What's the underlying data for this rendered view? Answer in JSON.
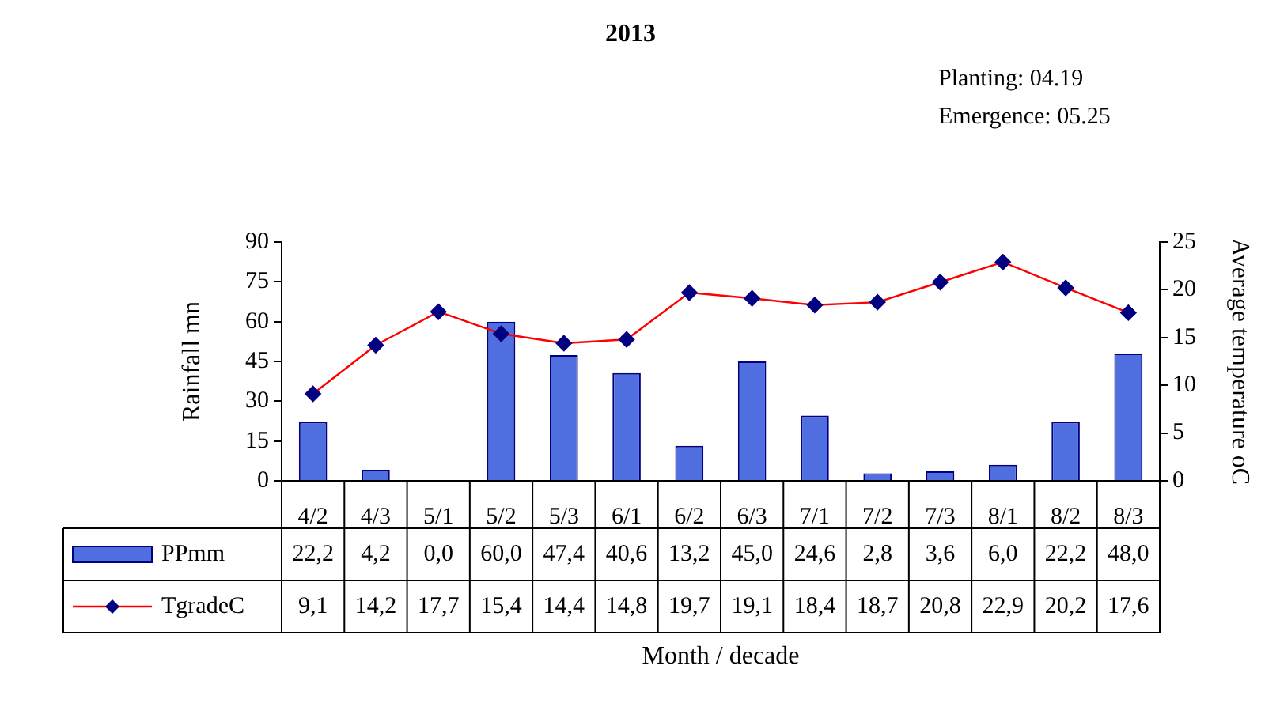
{
  "chart_data": {
    "type": "bar",
    "title": "2013",
    "annotations": [
      "Planting: 04.19",
      "Emergence: 05.25"
    ],
    "xlabel": "Month / decade",
    "ylabel": "Rainfall mn",
    "y2label": "Average temperature oC",
    "categories": [
      "4/2",
      "4/3",
      "5/1",
      "5/2",
      "5/3",
      "6/1",
      "6/2",
      "6/3",
      "7/1",
      "7/2",
      "7/3",
      "8/1",
      "8/2",
      "8/3"
    ],
    "series": [
      {
        "name": "PPmm",
        "color": "#4f6fe0",
        "values": [
          22.2,
          4.2,
          0.0,
          60.0,
          47.4,
          40.6,
          13.2,
          45.0,
          24.6,
          2.8,
          3.6,
          6.0,
          22.2,
          48.0
        ],
        "value_labels": [
          "22,2",
          "4,2",
          "0,0",
          "60,0",
          "47,4",
          "40,6",
          "13,2",
          "45,0",
          "24,6",
          "2,8",
          "3,6",
          "6,0",
          "22,2",
          "48,0"
        ]
      },
      {
        "name": "TgradeC",
        "type": "line",
        "axis": "y2",
        "color": "#ff0000",
        "values": [
          9.1,
          14.2,
          17.7,
          15.4,
          14.4,
          14.8,
          19.7,
          19.1,
          18.4,
          18.7,
          20.8,
          22.9,
          20.2,
          17.6
        ],
        "value_labels": [
          "9,1",
          "14,2",
          "17,7",
          "15,4",
          "14,4",
          "14,8",
          "19,7",
          "19,1",
          "18,4",
          "18,7",
          "20,8",
          "22,9",
          "20,2",
          "17,6"
        ]
      }
    ],
    "ylim": [
      0,
      90
    ],
    "yticks": [
      0,
      15,
      30,
      45,
      60,
      75,
      90
    ],
    "y2lim": [
      0,
      25
    ],
    "y2ticks": [
      0,
      5,
      10,
      15,
      20,
      25
    ],
    "grid": false,
    "legend": "bottom",
    "marker": "diamond",
    "line_style": "solid"
  }
}
